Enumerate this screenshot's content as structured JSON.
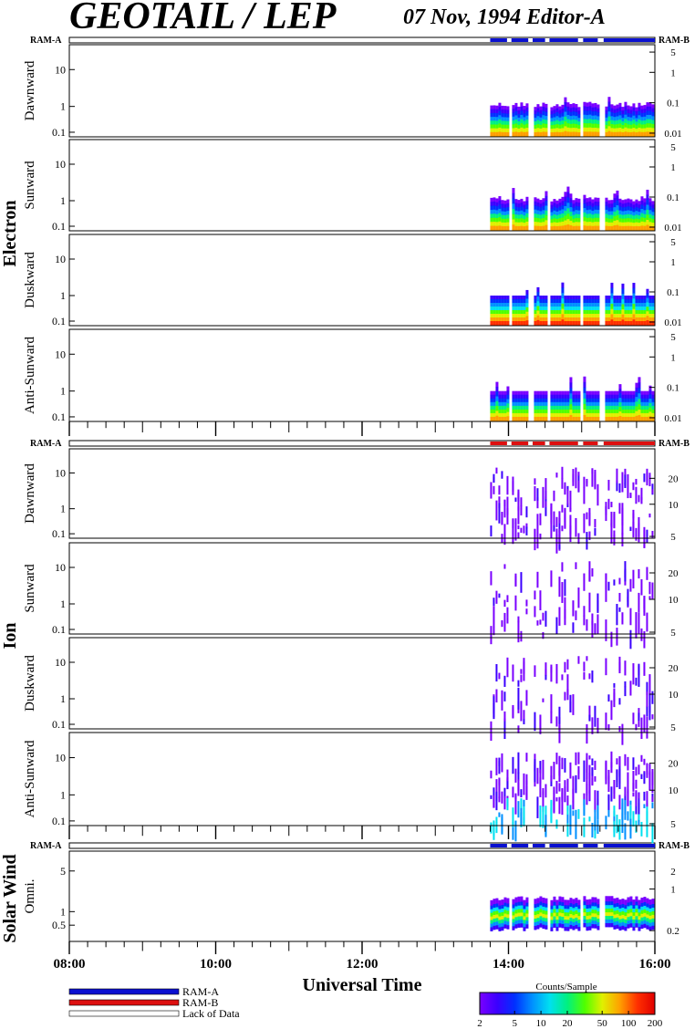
{
  "header": {
    "title": "GEOTAIL / LEP",
    "subtitle": "07 Nov, 1994   Editor-A"
  },
  "colors": {
    "ram_a": "#0a10d0",
    "ram_b": "#dd1010",
    "lack": "#ffffff",
    "colorbar": [
      "#7a00ff",
      "#3b00ff",
      "#0030ff",
      "#0090ff",
      "#00e0f0",
      "#00f080",
      "#50ff00",
      "#e0f000",
      "#ffa000",
      "#ff3000",
      "#e00000"
    ]
  },
  "labels": {
    "ram_a": "RAM-A",
    "ram_b": "RAM-B",
    "electron": "Electron",
    "ion": "Ion",
    "solar_wind": "Solar Wind",
    "xlabel": "Universal Time",
    "legend": {
      "ram_a": "RAM-A",
      "ram_b": "RAM-B",
      "lack": "Lack of Data"
    },
    "colorbar_title": "Counts/Sample",
    "colorbar_ticks": [
      "2",
      "5",
      "10",
      "20",
      "50",
      "100",
      "200"
    ]
  },
  "chart_data": {
    "type": "heatmap",
    "x_range_hours": [
      8,
      16
    ],
    "x_ticks": [
      "08:00",
      "10:00",
      "12:00",
      "14:00",
      "16:00"
    ],
    "data_coverage_hours": [
      13.75,
      16.0
    ],
    "data_gaps_hours": [
      [
        13.98,
        14.04
      ],
      [
        14.27,
        14.33
      ],
      [
        14.5,
        14.56
      ],
      [
        14.95,
        15.02
      ],
      [
        15.22,
        15.3
      ]
    ],
    "ram_strips": [
      {
        "position": "above-electron",
        "mode": "RAM-A"
      },
      {
        "position": "above-ion",
        "mode": "RAM-B"
      },
      {
        "position": "above-solar-wind",
        "mode": "RAM-A"
      }
    ],
    "panels": [
      {
        "group": "electron",
        "name": "Dawnward",
        "left_ticks": [
          "10",
          "1",
          "0.1"
        ],
        "right_ticks": [
          "5",
          "1",
          "0.1",
          "0.01"
        ]
      },
      {
        "group": "electron",
        "name": "Sunward",
        "left_ticks": [
          "10",
          "1",
          "0.1"
        ],
        "right_ticks": [
          "5",
          "1",
          "0.1",
          "0.01"
        ]
      },
      {
        "group": "electron",
        "name": "Duskward",
        "left_ticks": [
          "10",
          "1",
          "0.1"
        ],
        "right_ticks": [
          "5",
          "1",
          "0.1",
          "0.01"
        ]
      },
      {
        "group": "electron",
        "name": "Anti-Sunward",
        "left_ticks": [
          "10",
          "1",
          "0.1"
        ],
        "right_ticks": [
          "5",
          "1",
          "0.1",
          "0.01"
        ]
      },
      {
        "group": "ion",
        "name": "Dawnward",
        "left_ticks": [
          "10",
          "1",
          "0.1"
        ],
        "right_ticks": [
          "20",
          "10",
          "5"
        ]
      },
      {
        "group": "ion",
        "name": "Sunward",
        "left_ticks": [
          "10",
          "1",
          "0.1"
        ],
        "right_ticks": [
          "20",
          "10",
          "5"
        ]
      },
      {
        "group": "ion",
        "name": "Duskward",
        "left_ticks": [
          "10",
          "1",
          "0.1"
        ],
        "right_ticks": [
          "20",
          "10",
          "5"
        ]
      },
      {
        "group": "ion",
        "name": "Anti-Sunward",
        "left_ticks": [
          "10",
          "1",
          "0.1"
        ],
        "right_ticks": [
          "20",
          "10",
          "5"
        ]
      },
      {
        "group": "solar_wind",
        "name": "Omni.",
        "left_ticks": [
          "5",
          "1",
          "0.5"
        ],
        "right_ticks": [
          "2",
          "1",
          "0.2"
        ]
      }
    ]
  }
}
